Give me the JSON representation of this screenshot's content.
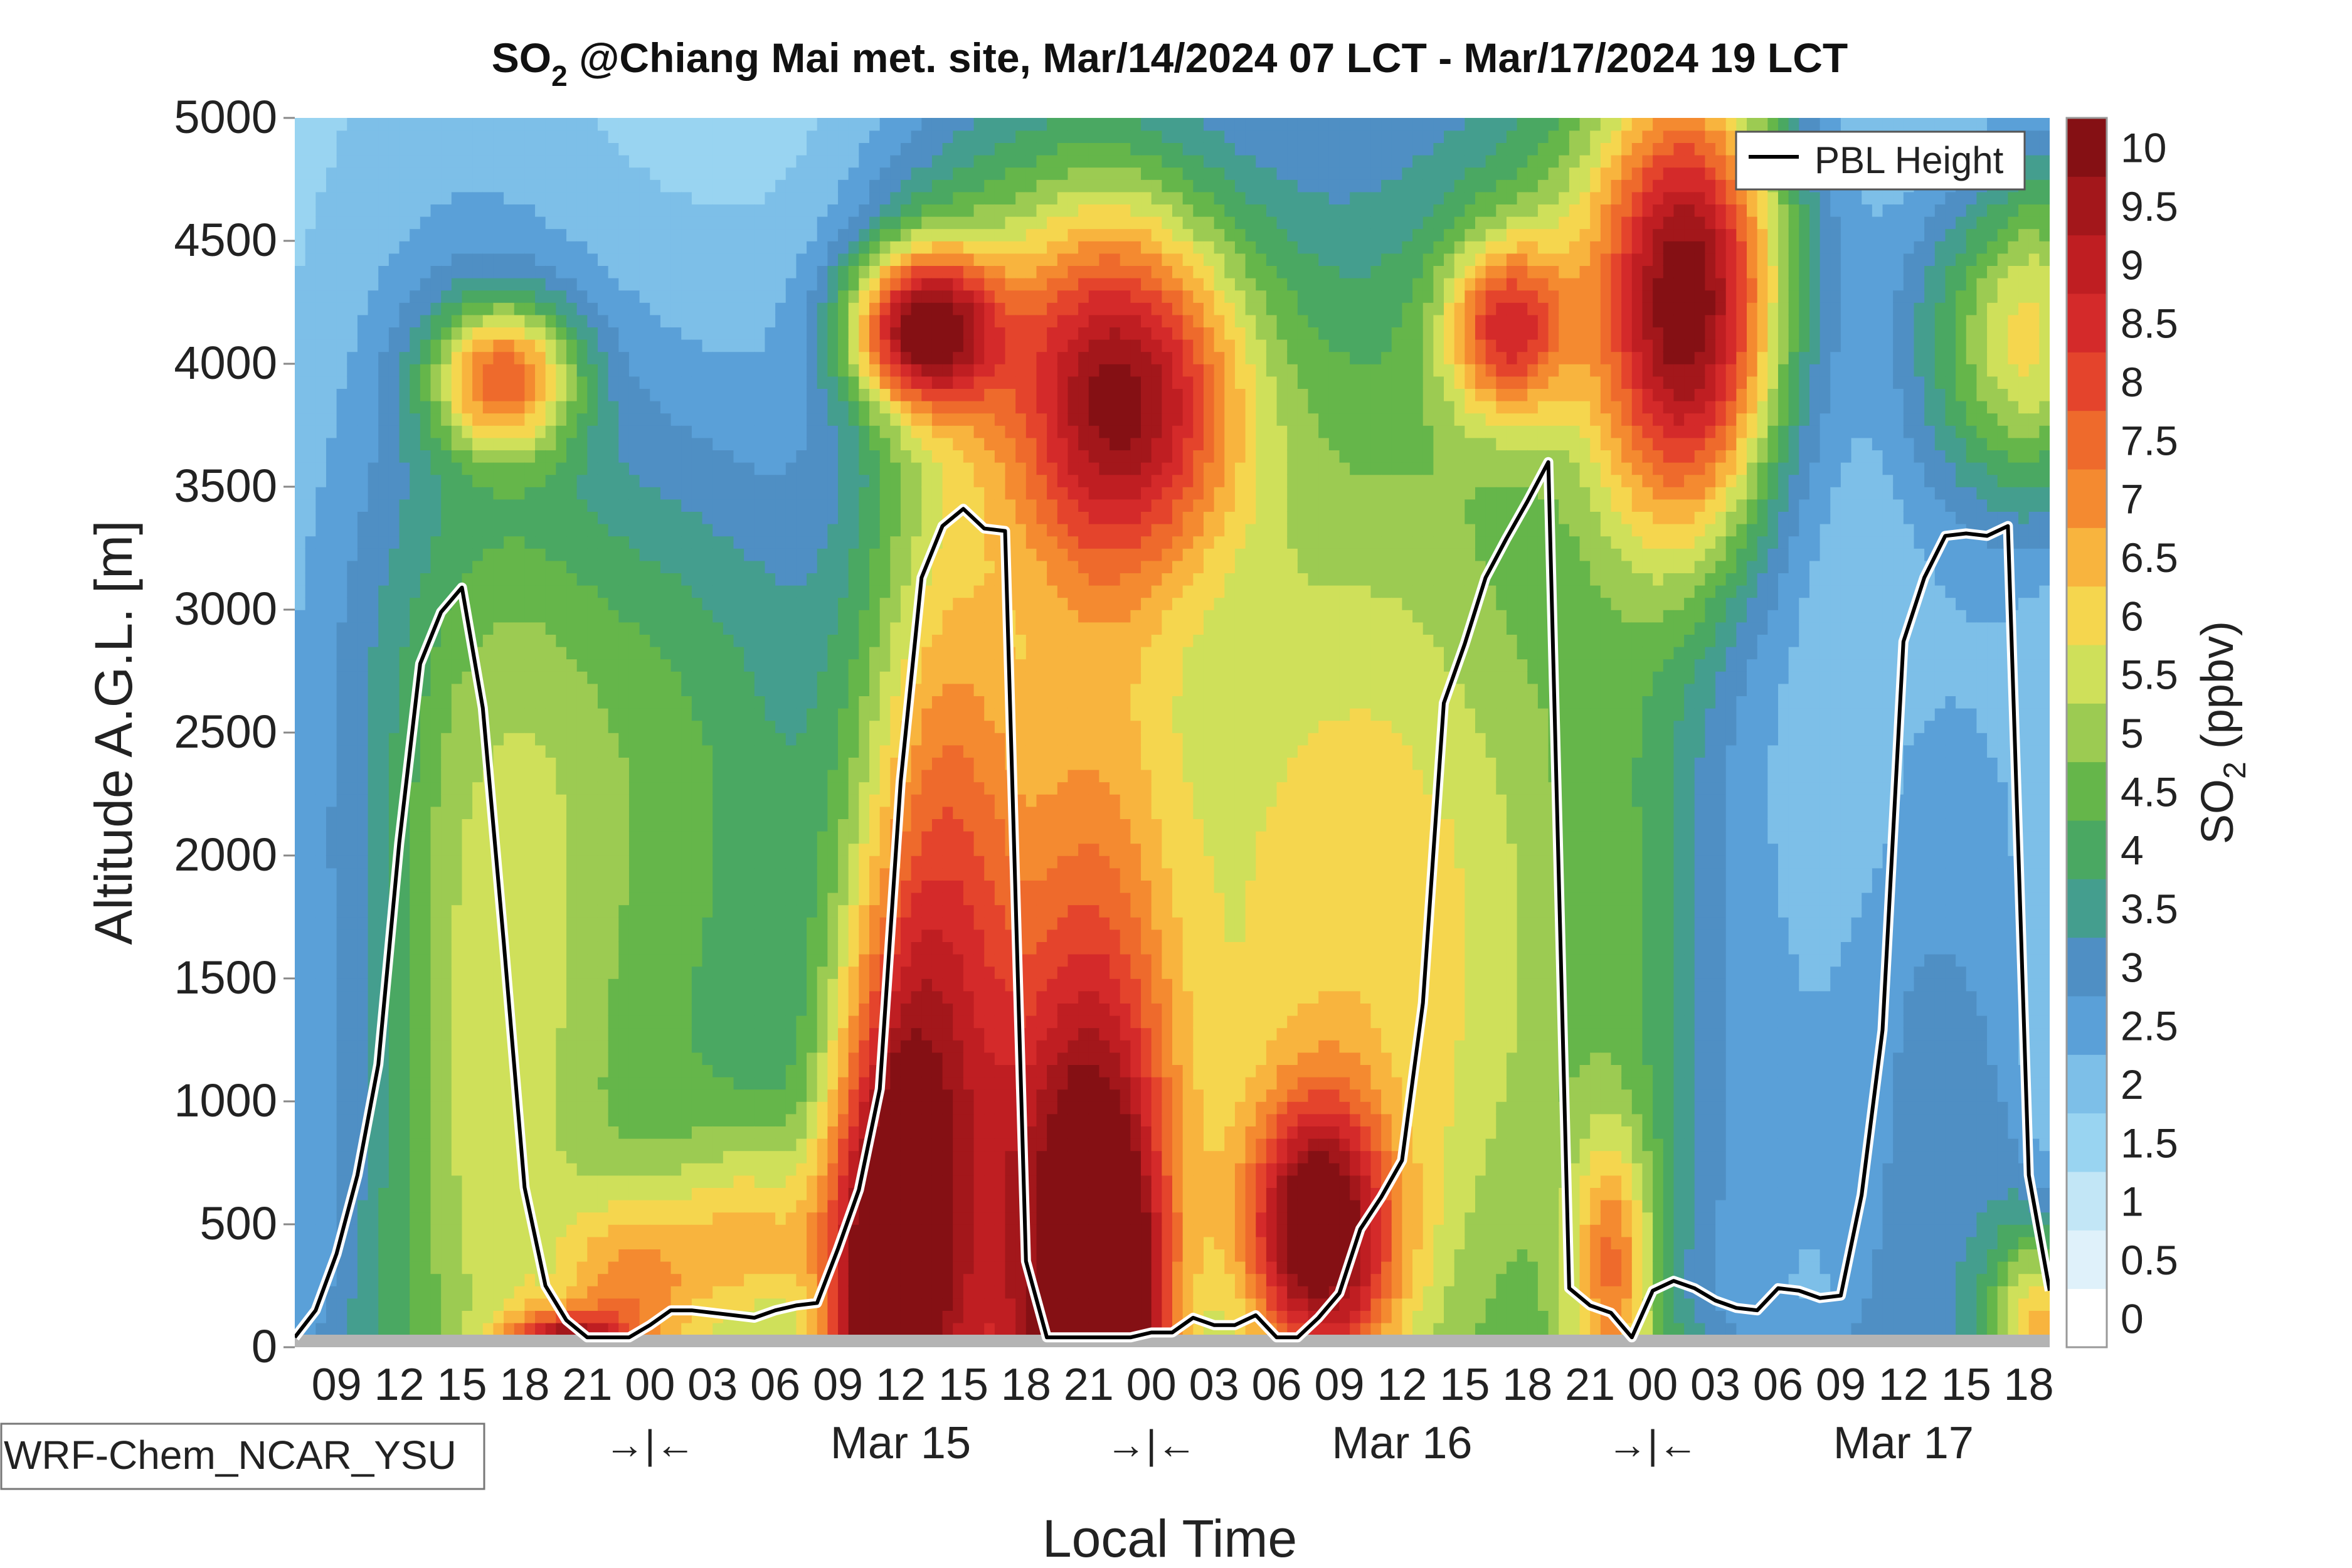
{
  "chart_data": {
    "type": "heatmap",
    "title": {
      "species_main": "SO",
      "species_sub": "2",
      "rest": " @Chiang Mai met. site, Mar/14/2024 07 LCT - Mar/17/2024 19 LCT"
    },
    "xlabel": "Local Time",
    "ylabel": "Altitude A.G.L. [m]",
    "colorbar_label": {
      "main": "SO",
      "sub": "2",
      "rest": " (ppbv)"
    },
    "model_label": "WRF-Chem_NCAR_YSU",
    "legend": [
      {
        "label": "PBL Height",
        "color": "#000000"
      }
    ],
    "legend_position": "top-right",
    "x_range_hours": [
      0,
      84
    ],
    "ylim": [
      0,
      5000
    ],
    "yticks": [
      0,
      500,
      1000,
      1500,
      2000,
      2500,
      3000,
      3500,
      4000,
      4500,
      5000
    ],
    "xticks": [
      {
        "h": 2,
        "label": "09"
      },
      {
        "h": 5,
        "label": "12"
      },
      {
        "h": 8,
        "label": "15"
      },
      {
        "h": 11,
        "label": "18"
      },
      {
        "h": 14,
        "label": "21"
      },
      {
        "h": 17,
        "label": "00"
      },
      {
        "h": 20,
        "label": "03"
      },
      {
        "h": 23,
        "label": "06"
      },
      {
        "h": 26,
        "label": "09"
      },
      {
        "h": 29,
        "label": "12"
      },
      {
        "h": 32,
        "label": "15"
      },
      {
        "h": 35,
        "label": "18"
      },
      {
        "h": 38,
        "label": "21"
      },
      {
        "h": 41,
        "label": "00"
      },
      {
        "h": 44,
        "label": "03"
      },
      {
        "h": 47,
        "label": "06"
      },
      {
        "h": 50,
        "label": "09"
      },
      {
        "h": 53,
        "label": "12"
      },
      {
        "h": 56,
        "label": "15"
      },
      {
        "h": 59,
        "label": "18"
      },
      {
        "h": 62,
        "label": "21"
      },
      {
        "h": 65,
        "label": "00"
      },
      {
        "h": 68,
        "label": "03"
      },
      {
        "h": 71,
        "label": "06"
      },
      {
        "h": 74,
        "label": "09"
      },
      {
        "h": 77,
        "label": "12"
      },
      {
        "h": 80,
        "label": "15"
      },
      {
        "h": 83,
        "label": "18"
      }
    ],
    "day_labels": [
      {
        "h": 29,
        "label": "Mar 15"
      },
      {
        "h": 53,
        "label": "Mar 16"
      },
      {
        "h": 77,
        "label": "Mar 17"
      }
    ],
    "midnight_markers": [
      {
        "h": 17,
        "label": "→|←"
      },
      {
        "h": 41,
        "label": "→|←"
      },
      {
        "h": 65,
        "label": "→|←"
      }
    ],
    "color_levels": [
      0,
      0.5,
      1,
      1.5,
      2,
      2.5,
      3,
      3.5,
      4,
      4.5,
      5,
      5.5,
      6,
      6.5,
      7,
      7.5,
      8,
      8.5,
      9,
      9.5,
      10,
      10.5
    ],
    "colorbar_ticks": [
      {
        "v": 0,
        "label": "0"
      },
      {
        "v": 0.5,
        "label": "0.5"
      },
      {
        "v": 1,
        "label": "1"
      },
      {
        "v": 1.5,
        "label": "1.5"
      },
      {
        "v": 2,
        "label": "2"
      },
      {
        "v": 2.5,
        "label": "2.5"
      },
      {
        "v": 3,
        "label": "3"
      },
      {
        "v": 3.5,
        "label": "3.5"
      },
      {
        "v": 4,
        "label": "4"
      },
      {
        "v": 4.5,
        "label": "4.5"
      },
      {
        "v": 5,
        "label": "5"
      },
      {
        "v": 5.5,
        "label": "5.5"
      },
      {
        "v": 6,
        "label": "6"
      },
      {
        "v": 6.5,
        "label": "6.5"
      },
      {
        "v": 7,
        "label": "7"
      },
      {
        "v": 7.5,
        "label": "7.5"
      },
      {
        "v": 8,
        "label": "8"
      },
      {
        "v": 8.5,
        "label": "8.5"
      },
      {
        "v": 9,
        "label": "9"
      },
      {
        "v": 9.5,
        "label": "9.5"
      },
      {
        "v": 10,
        "label": "10"
      }
    ],
    "colors": [
      "#ffffff",
      "#dff1fa",
      "#c2e6f6",
      "#99d4f1",
      "#7dbfe8",
      "#5aa0d8",
      "#4f8fc4",
      "#449e8e",
      "#4aa862",
      "#65b64a",
      "#9ccb52",
      "#cfe05a",
      "#f5d64e",
      "#f8b43e",
      "#f48a30",
      "#ee6a2c",
      "#e4442c",
      "#d42a2a",
      "#bf1e22",
      "#a3171b",
      "#851014"
    ],
    "pbl_height": {
      "hours": [
        0,
        1,
        2,
        3,
        4,
        5,
        6,
        7,
        8,
        9,
        10,
        11,
        12,
        13,
        14,
        15,
        16,
        17,
        18,
        19,
        20,
        21,
        22,
        23,
        24,
        25,
        26,
        27,
        28,
        29,
        30,
        31,
        32,
        33,
        34,
        35,
        36,
        37,
        38,
        39,
        40,
        41,
        42,
        43,
        44,
        45,
        46,
        47,
        48,
        49,
        50,
        51,
        52,
        53,
        54,
        55,
        56,
        57,
        58,
        59,
        60,
        61,
        62,
        63,
        64,
        65,
        66,
        67,
        68,
        69,
        70,
        71,
        72,
        73,
        74,
        75,
        76,
        77,
        78,
        79,
        80,
        81,
        82,
        83,
        84
      ],
      "values": [
        40,
        150,
        380,
        700,
        1150,
        2050,
        2780,
        2990,
        3090,
        2600,
        1650,
        650,
        250,
        110,
        40,
        40,
        40,
        90,
        150,
        150,
        140,
        130,
        120,
        150,
        170,
        180,
        400,
        640,
        1050,
        2300,
        3130,
        3340,
        3410,
        3330,
        3320,
        350,
        40,
        40,
        40,
        40,
        40,
        60,
        60,
        120,
        90,
        90,
        130,
        40,
        40,
        120,
        220,
        480,
        610,
        760,
        1400,
        2620,
        2860,
        3130,
        3290,
        3440,
        3600,
        240,
        170,
        140,
        40,
        230,
        270,
        240,
        190,
        160,
        150,
        240,
        230,
        200,
        210,
        620,
        1290,
        2870,
        3130,
        3300,
        3310,
        3300,
        3340,
        700,
        230
      ]
    },
    "blobs": [
      {
        "h": 8,
        "z": 1400,
        "sh": 4,
        "sz": 1900,
        "a": 1.4
      },
      {
        "h": 11,
        "z": 600,
        "sh": 3,
        "sz": 1600,
        "a": 1.0
      },
      {
        "h": 14,
        "z": 1600,
        "sh": 6,
        "sz": 1600,
        "a": 1.2
      },
      {
        "h": 16,
        "z": 200,
        "sh": 2.5,
        "sz": 300,
        "a": 3.0
      },
      {
        "h": 13,
        "z": 30,
        "sh": 2,
        "sz": 80,
        "a": 4.0
      },
      {
        "h": 10,
        "z": 3950,
        "sh": 2.5,
        "sz": 220,
        "a": 4.6
      },
      {
        "h": 15,
        "z": 2800,
        "sh": 8,
        "sz": 700,
        "a": 0.8
      },
      {
        "h": 22,
        "z": 400,
        "sh": 3,
        "sz": 350,
        "a": 3.0
      },
      {
        "h": 20,
        "z": 1600,
        "sh": 5,
        "sz": 1400,
        "a": 1.4
      },
      {
        "h": 28,
        "z": 100,
        "sh": 2,
        "sz": 900,
        "a": 5.0
      },
      {
        "h": 31,
        "z": 1500,
        "sh": 3,
        "sz": 1800,
        "a": 3.4
      },
      {
        "h": 30,
        "z": 400,
        "sh": 3,
        "sz": 1300,
        "a": 2.5
      },
      {
        "h": 38,
        "z": 200,
        "sh": 3,
        "sz": 900,
        "a": 6.0
      },
      {
        "h": 38,
        "z": 1200,
        "sh": 3,
        "sz": 2000,
        "a": 2.2
      },
      {
        "h": 39,
        "z": 50,
        "sh": 1.5,
        "sz": 400,
        "a": 3.5
      },
      {
        "h": 30,
        "z": 4150,
        "sh": 2.5,
        "sz": 230,
        "a": 6.2
      },
      {
        "h": 36,
        "z": 2900,
        "sh": 6,
        "sz": 1600,
        "a": 1.0
      },
      {
        "h": 40,
        "z": 3850,
        "sh": 4,
        "sz": 500,
        "a": 4.6
      },
      {
        "h": 37,
        "z": 4300,
        "sh": 6,
        "sz": 600,
        "a": 1.6
      },
      {
        "h": 49,
        "z": 450,
        "sh": 2.5,
        "sz": 400,
        "a": 6.2
      },
      {
        "h": 46,
        "z": 1400,
        "sh": 6,
        "sz": 1600,
        "a": 1.4
      },
      {
        "h": 52,
        "z": 1600,
        "sh": 6,
        "sz": 1600,
        "a": 1.5
      },
      {
        "h": 57,
        "z": 1600,
        "sh": 5,
        "sz": 2000,
        "a": 1.2
      },
      {
        "h": 58,
        "z": 4150,
        "sh": 2,
        "sz": 250,
        "a": 4.0
      },
      {
        "h": 63,
        "z": 300,
        "sh": 1.5,
        "sz": 400,
        "a": 3.5
      },
      {
        "h": 64,
        "z": 1600,
        "sh": 3,
        "sz": 1800,
        "a": 1.4
      },
      {
        "h": 67,
        "z": 4150,
        "sh": 3,
        "sz": 700,
        "a": 5.6
      },
      {
        "h": 67,
        "z": 4700,
        "sh": 5,
        "sz": 700,
        "a": 2.0
      },
      {
        "h": 62,
        "z": 4400,
        "sh": 6,
        "sz": 700,
        "a": 1.6
      },
      {
        "h": 72,
        "z": 1200,
        "sh": 7,
        "sz": 1500,
        "a": 0.6
      },
      {
        "h": 80,
        "z": 1500,
        "sh": 4,
        "sz": 1800,
        "a": 0.8
      },
      {
        "h": 81,
        "z": 4100,
        "sh": 3,
        "sz": 500,
        "a": 3.0
      },
      {
        "h": 84,
        "z": 4200,
        "sh": 2,
        "sz": 600,
        "a": 2.5
      },
      {
        "h": 84,
        "z": 100,
        "sh": 2,
        "sz": 300,
        "a": 4.0
      },
      {
        "h": 42,
        "z": 2400,
        "sh": 14,
        "sz": 2200,
        "a": 1.3
      },
      {
        "h": 6,
        "z": 2400,
        "sh": 8,
        "sz": 2800,
        "a": 1.0
      },
      {
        "h": 52,
        "z": 3000,
        "sh": 10,
        "sz": 1800,
        "a": 1.0
      }
    ]
  }
}
